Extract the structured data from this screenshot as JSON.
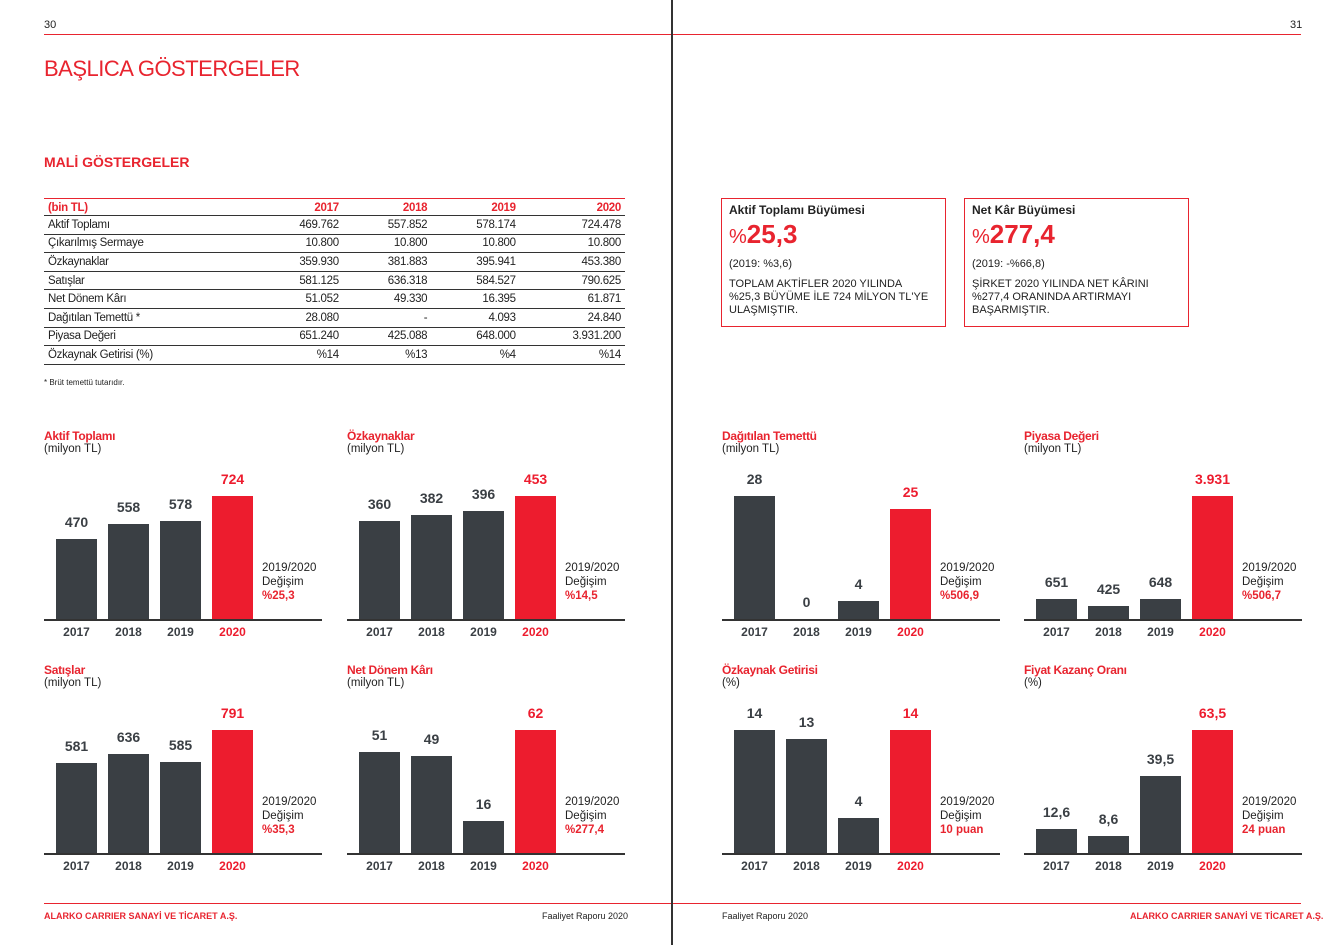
{
  "header": {
    "left_page": "30",
    "right_page": "31",
    "title": "BAŞLICA GÖSTERGELER",
    "section": "MALİ GÖSTERGELER"
  },
  "table": {
    "unit": "(bin TL)",
    "columns": [
      "2017",
      "2018",
      "2019",
      "2020"
    ],
    "rows": [
      {
        "label": "Aktif Toplamı",
        "values": [
          "469.762",
          "557.852",
          "578.174",
          "724.478"
        ]
      },
      {
        "label": "Çıkarılmış Sermaye",
        "values": [
          "10.800",
          "10.800",
          "10.800",
          "10.800"
        ]
      },
      {
        "label": "Özkaynaklar",
        "values": [
          "359.930",
          "381.883",
          "395.941",
          "453.380"
        ]
      },
      {
        "label": "Satışlar",
        "values": [
          "581.125",
          "636.318",
          "584.527",
          "790.625"
        ]
      },
      {
        "label": "Net Dönem Kârı",
        "values": [
          "51.052",
          "49.330",
          "16.395",
          "61.871"
        ]
      },
      {
        "label": "Dağıtılan Temettü *",
        "values": [
          "28.080",
          "-",
          "4.093",
          "24.840"
        ]
      },
      {
        "label": "Piyasa Değeri",
        "values": [
          "651.240",
          "425.088",
          "648.000",
          "3.931.200"
        ]
      },
      {
        "label": "Özkaynak Getirisi (%)",
        "values": [
          "%14",
          "%13",
          "%4",
          "%14"
        ]
      }
    ],
    "footnote": "* Brüt temettü tutarıdır."
  },
  "highlights": [
    {
      "title": "Aktif Toplamı Büyümesi",
      "prefix": "%",
      "value": "25,3",
      "previous": "(2019: %3,6)",
      "description": "TOPLAM AKTİFLER 2020 YILINDA %25,3 BÜYÜME İLE 724 MİLYON TL'YE ULAŞMIŞTIR."
    },
    {
      "title": "Net Kâr Büyümesi",
      "prefix": "%",
      "value": "277,4",
      "previous": "(2019: -%66,8)",
      "description": "ŞİRKET 2020 YILINDA NET KÂRINI %277,4 ORANINDA ARTIRMAYI BAŞARMIŞTIR."
    }
  ],
  "chart_data": [
    {
      "type": "bar",
      "title": "Aktif Toplamı",
      "unit": "(milyon TL)",
      "categories": [
        "2017",
        "2018",
        "2019",
        "2020"
      ],
      "values": [
        470,
        558,
        578,
        724
      ],
      "labels": [
        "470",
        "558",
        "578",
        "724"
      ],
      "highlight": "2020",
      "note": [
        "2019/2020",
        "Değişim",
        "%25,3"
      ]
    },
    {
      "type": "bar",
      "title": "Özkaynaklar",
      "unit": "(milyon TL)",
      "categories": [
        "2017",
        "2018",
        "2019",
        "2020"
      ],
      "values": [
        360,
        382,
        396,
        453
      ],
      "labels": [
        "360",
        "382",
        "396",
        "453"
      ],
      "highlight": "2020",
      "note": [
        "2019/2020",
        "Değişim",
        "%14,5"
      ]
    },
    {
      "type": "bar",
      "title": "Dağıtılan Temettü",
      "unit": "(milyon TL)",
      "categories": [
        "2017",
        "2018",
        "2019",
        "2020"
      ],
      "values": [
        28,
        0,
        4,
        25
      ],
      "labels": [
        "28",
        "0",
        "4",
        "25"
      ],
      "highlight": "2020",
      "note": [
        "2019/2020",
        "Değişim",
        "%506,9"
      ]
    },
    {
      "type": "bar",
      "title": "Piyasa Değeri",
      "unit": "(milyon TL)",
      "categories": [
        "2017",
        "2018",
        "2019",
        "2020"
      ],
      "values": [
        651,
        425,
        648,
        3931
      ],
      "labels": [
        "651",
        "425",
        "648",
        "3.931"
      ],
      "highlight": "2020",
      "note": [
        "2019/2020",
        "Değişim",
        "%506,7"
      ]
    },
    {
      "type": "bar",
      "title": "Satışlar",
      "unit": "(milyon TL)",
      "categories": [
        "2017",
        "2018",
        "2019",
        "2020"
      ],
      "values": [
        581,
        636,
        585,
        791
      ],
      "labels": [
        "581",
        "636",
        "585",
        "791"
      ],
      "highlight": "2020",
      "note": [
        "2019/2020",
        "Değişim",
        "%35,3"
      ]
    },
    {
      "type": "bar",
      "title": "Net Dönem Kârı",
      "unit": "(milyon TL)",
      "categories": [
        "2017",
        "2018",
        "2019",
        "2020"
      ],
      "values": [
        51,
        49,
        16,
        62
      ],
      "labels": [
        "51",
        "49",
        "16",
        "62"
      ],
      "highlight": "2020",
      "note": [
        "2019/2020",
        "Değişim",
        "%277,4"
      ]
    },
    {
      "type": "bar",
      "title": "Özkaynak Getirisi",
      "unit": "(%)",
      "categories": [
        "2017",
        "2018",
        "2019",
        "2020"
      ],
      "values": [
        14,
        13,
        4,
        14
      ],
      "labels": [
        "14",
        "13",
        "4",
        "14"
      ],
      "highlight": "2020",
      "note": [
        "2019/2020",
        "Değişim",
        "10 puan"
      ]
    },
    {
      "type": "bar",
      "title": "Fiyat Kazanç Oranı",
      "unit": "(%)",
      "categories": [
        "2017",
        "2018",
        "2019",
        "2020"
      ],
      "values": [
        12.6,
        8.6,
        39.5,
        63.5
      ],
      "labels": [
        "12,6",
        "8,6",
        "39,5",
        "63,5"
      ],
      "highlight": "2020",
      "note": [
        "2019/2020",
        "Değişim",
        "24 puan"
      ]
    }
  ],
  "footer": {
    "company": "ALARKO CARRIER SANAYİ VE TİCARET A.Ş.",
    "report": "Faaliyet Raporu 2020"
  },
  "colors": {
    "accent": "#ed1c2e",
    "bar": "#3a3f44"
  }
}
